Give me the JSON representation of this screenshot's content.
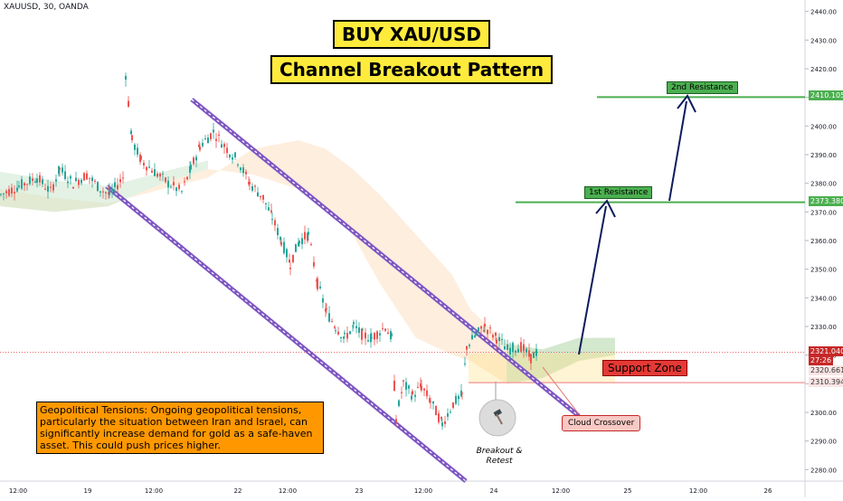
{
  "symbol": "XAUUSD, 30, OANDA",
  "titles": {
    "line1": "BUY XAU/USD",
    "line2": "Channel Breakout Pattern"
  },
  "note": "Geopolitical Tensions: Ongoing geopolitical tensions, particularly the situation between Iran and Israel, can significantly increase demand for gold as a safe-haven asset. This could push prices higher.",
  "labels": {
    "resistance1": "1st Resistance",
    "resistance2": "2nd Resistance",
    "support": "Support Zone",
    "cloud": "Cloud Crossover",
    "breakout": "Breakout & Retest"
  },
  "price_tags": {
    "res2": "2410.105",
    "res1": "2373.380",
    "current": "2321.040",
    "countdown": "27:26",
    "support_top": "2320.661",
    "support_bottom": "2310.394"
  },
  "colors": {
    "bull": "#26a69a",
    "bear": "#ef5350",
    "channel": "#7e57c2",
    "resistance": "#4caf50",
    "support": "#f4a3a3",
    "arrow": "#0d1b5e",
    "cloud_green": "#c8e6c9",
    "cloud_red": "#ffcdd2"
  },
  "chart_data": {
    "type": "candlestick",
    "y_axis": {
      "ticks": [
        2440,
        2430,
        2420,
        2410,
        2400,
        2390,
        2380,
        2370,
        2360,
        2350,
        2340,
        2330,
        2320,
        2310,
        2300,
        2290,
        2280
      ],
      "range": [
        2276,
        2444
      ]
    },
    "x_axis": {
      "ticks": [
        "12:00",
        "19",
        "12:00",
        "22",
        "12:00",
        "23",
        "12:00",
        "24",
        "12:00",
        "25",
        "12:00",
        "26"
      ]
    },
    "levels": {
      "resistance_1": 2373.38,
      "resistance_2": 2410.105,
      "support_top": 2320.661,
      "support_bottom": 2310.394,
      "current": 2321.04
    },
    "price_path": [
      [
        0,
        2376
      ],
      [
        20,
        2379
      ],
      [
        40,
        2382
      ],
      [
        55,
        2377
      ],
      [
        65,
        2385
      ],
      [
        80,
        2380
      ],
      [
        95,
        2383
      ],
      [
        110,
        2378
      ],
      [
        120,
        2376
      ],
      [
        135,
        2382
      ],
      [
        138,
        2418
      ],
      [
        145,
        2395
      ],
      [
        155,
        2388
      ],
      [
        170,
        2384
      ],
      [
        185,
        2380
      ],
      [
        200,
        2377
      ],
      [
        210,
        2385
      ],
      [
        220,
        2393
      ],
      [
        235,
        2398
      ],
      [
        250,
        2392
      ],
      [
        262,
        2388
      ],
      [
        275,
        2380
      ],
      [
        290,
        2375
      ],
      [
        300,
        2368
      ],
      [
        310,
        2360
      ],
      [
        320,
        2352
      ],
      [
        330,
        2360
      ],
      [
        340,
        2362
      ],
      [
        350,
        2345
      ],
      [
        360,
        2335
      ],
      [
        370,
        2330
      ],
      [
        380,
        2326
      ],
      [
        390,
        2330
      ],
      [
        400,
        2327
      ],
      [
        410,
        2326
      ],
      [
        425,
        2330
      ],
      [
        432,
        2326
      ],
      [
        437,
        2298
      ],
      [
        445,
        2310
      ],
      [
        455,
        2306
      ],
      [
        465,
        2309
      ],
      [
        475,
        2304
      ],
      [
        488,
        2296
      ],
      [
        500,
        2303
      ],
      [
        510,
        2306
      ],
      [
        515,
        2323
      ],
      [
        525,
        2327
      ],
      [
        535,
        2330
      ],
      [
        548,
        2326
      ],
      [
        560,
        2322
      ],
      [
        575,
        2323
      ],
      [
        586,
        2319
      ],
      [
        595,
        2322
      ]
    ]
  }
}
